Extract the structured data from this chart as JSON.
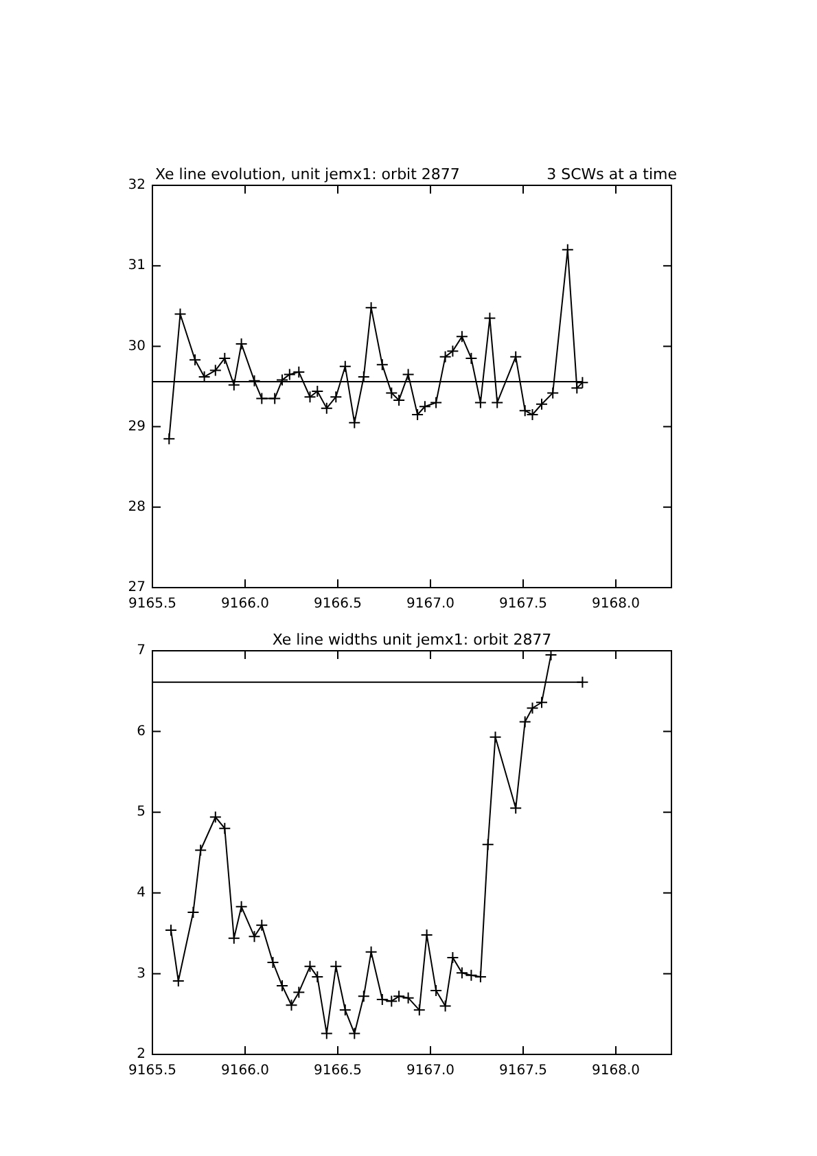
{
  "chart_data": [
    {
      "type": "line",
      "title": "Xe line evolution, unit jemx1: orbit 2877",
      "subtitle": "3 SCWs at a time",
      "x": [
        9165.59,
        9165.65,
        9165.73,
        9165.78,
        9165.84,
        9165.89,
        9165.94,
        9165.98,
        9166.05,
        9166.09,
        9166.16,
        9166.2,
        9166.24,
        9166.29,
        9166.35,
        9166.39,
        9166.44,
        9166.49,
        9166.54,
        9166.59,
        9166.64,
        9166.68,
        9166.74,
        9166.79,
        9166.83,
        9166.88,
        9166.93,
        9166.97,
        9167.03,
        9167.08,
        9167.12,
        9167.17,
        9167.22,
        9167.27,
        9167.32,
        9167.36,
        9167.46,
        9167.51,
        9167.55,
        9167.6,
        9167.66,
        9167.74,
        9167.79,
        9167.82
      ],
      "series": [
        {
          "color": "#000000",
          "values": [
            28.85,
            30.4,
            29.83,
            29.62,
            29.7,
            29.85,
            29.52,
            30.03,
            29.57,
            29.35,
            29.35,
            29.58,
            29.65,
            29.68,
            29.37,
            29.44,
            29.23,
            29.37,
            29.75,
            29.05,
            29.62,
            30.48,
            29.77,
            29.42,
            29.33,
            29.65,
            29.15,
            29.25,
            29.3,
            29.87,
            29.94,
            30.12,
            29.85,
            29.3,
            30.35,
            29.3,
            29.87,
            29.2,
            29.15,
            29.28,
            29.42,
            31.2,
            29.48,
            29.55
          ]
        }
      ],
      "ref_lines": [
        {
          "axis": "y",
          "value": 29.56,
          "color": "#000000"
        }
      ],
      "xlim": [
        9165.5,
        9168.3
      ],
      "xticks": [
        {
          "value": 9165.5,
          "label": "9165.5"
        },
        {
          "value": 9166,
          "label": "9166.0"
        },
        {
          "value": 9166.5,
          "label": "9166.5"
        },
        {
          "value": 9167,
          "label": "9167.0"
        },
        {
          "value": 9167.5,
          "label": "9167.5"
        },
        {
          "value": 9168,
          "label": "9168.0"
        }
      ],
      "ylim": [
        27,
        32
      ],
      "yticks": [
        27,
        28,
        29,
        30,
        31,
        32
      ],
      "grid": false,
      "legend": false,
      "marker": "cross",
      "line_style": "solid"
    },
    {
      "type": "line",
      "title": "Xe line widths unit jemx1: orbit 2877",
      "x": [
        9165.6,
        9165.64,
        9165.72,
        9165.76,
        9165.84,
        9165.89,
        9165.94,
        9165.98,
        9166.05,
        9166.09,
        9166.15,
        9166.2,
        9166.25,
        9166.29,
        9166.35,
        9166.39,
        9166.44,
        9166.49,
        9166.54,
        9166.59,
        9166.64,
        9166.68,
        9166.74,
        9166.79,
        9166.83,
        9166.88,
        9166.94,
        9166.98,
        9167.03,
        9167.08,
        9167.12,
        9167.17,
        9167.22,
        9167.27,
        9167.31,
        9167.35,
        9167.46,
        9167.51,
        9167.55,
        9167.6,
        9167.65,
        9167.74,
        9167.82
      ],
      "series": [
        {
          "color": "#000000",
          "values": [
            3.54,
            2.91,
            3.76,
            4.53,
            4.94,
            4.8,
            3.44,
            3.83,
            3.46,
            3.6,
            3.14,
            2.85,
            2.61,
            2.77,
            3.09,
            2.96,
            2.26,
            3.09,
            2.55,
            2.26,
            2.72,
            3.27,
            2.68,
            2.66,
            2.72,
            2.7,
            2.55,
            3.48,
            2.79,
            2.6,
            3.2,
            3.01,
            2.98,
            2.96,
            4.6,
            5.93,
            5.05,
            6.12,
            6.29,
            6.36,
            6.95,
            null,
            6.61
          ]
        }
      ],
      "ref_lines": [
        {
          "axis": "y",
          "value": 6.61,
          "color": "#000000"
        }
      ],
      "xlim": [
        9165.5,
        9168.3
      ],
      "xticks": [
        {
          "value": 9165.5,
          "label": "9165.5"
        },
        {
          "value": 9166,
          "label": "9166.0"
        },
        {
          "value": 9166.5,
          "label": "9166.5"
        },
        {
          "value": 9167,
          "label": "9167.0"
        },
        {
          "value": 9167.5,
          "label": "9167.5"
        },
        {
          "value": 9168,
          "label": "9168.0"
        }
      ],
      "ylim": [
        2,
        7
      ],
      "yticks": [
        2,
        3,
        4,
        5,
        6,
        7
      ],
      "grid": false,
      "legend": false,
      "marker": "cross",
      "line_style": "solid"
    }
  ]
}
